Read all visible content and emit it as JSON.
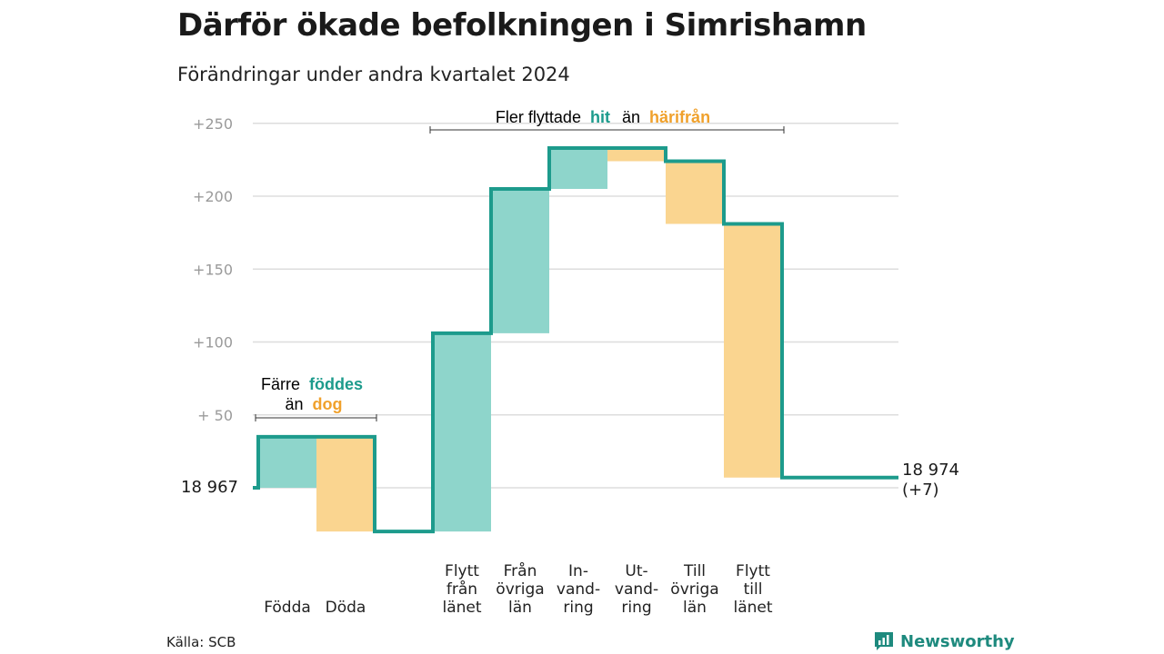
{
  "title": "Därför ökade befolkningen i Simrishamn",
  "subtitle": "Förändringar under andra kvartalet 2024",
  "source": "Källa: SCB",
  "brand": "Newsworthy",
  "colors": {
    "increase": "#8ed5cb",
    "decrease": "#fad590",
    "line": "#1d9b8c",
    "accent_green": "#1d9b8c",
    "accent_orange": "#f0a12c",
    "grid": "#dddddd"
  },
  "annotations": {
    "births_deaths": {
      "line1_a": "Färre",
      "line1_b": "föddes",
      "line2_a": "än",
      "line2_b": "dog"
    },
    "migration": {
      "part_a": "Fler flyttade",
      "part_b": "hit",
      "part_c": "än",
      "part_d": "härifrån"
    }
  },
  "chart_data": {
    "type": "waterfall",
    "title": "Därför ökade befolkningen i Simrishamn",
    "subtitle": "Förändringar under andra kvartalet 2024",
    "start_value": 18967,
    "start_label": "18  967",
    "end_value": 18974,
    "end_label": "18 974",
    "end_change_label": "(+7)",
    "y_ticks": [
      {
        "value": 250,
        "label": "+250"
      },
      {
        "value": 200,
        "label": "+200"
      },
      {
        "value": 150,
        "label": "+150"
      },
      {
        "value": 100,
        "label": "+100"
      },
      {
        "value": 50,
        "label": "+  50"
      }
    ],
    "ylim": [
      -30,
      255
    ],
    "steps": [
      {
        "key": "fodda",
        "lines": [
          "Födda"
        ],
        "value": 35,
        "group": "natural"
      },
      {
        "key": "doda",
        "lines": [
          "Döda"
        ],
        "value": -65,
        "group": "natural"
      },
      {
        "key": "flytt-fran-lanet",
        "lines": [
          "Flytt",
          "från",
          "länet"
        ],
        "value": 136,
        "group": "migration"
      },
      {
        "key": "fran-ovriga-lan",
        "lines": [
          "Från",
          "övriga",
          "län"
        ],
        "value": 99,
        "group": "migration"
      },
      {
        "key": "invandring",
        "lines": [
          "In-",
          "vand-",
          "ring"
        ],
        "value": 28,
        "group": "migration"
      },
      {
        "key": "utvandring",
        "lines": [
          "Ut-",
          "vand-",
          "ring"
        ],
        "value": -9,
        "group": "migration"
      },
      {
        "key": "till-ovriga-lan",
        "lines": [
          "Till",
          "övriga",
          "län"
        ],
        "value": -43,
        "group": "migration"
      },
      {
        "key": "flytt-till-lanet",
        "lines": [
          "Flytt",
          "till",
          "länet"
        ],
        "value": -174,
        "group": "migration"
      }
    ],
    "grid": true,
    "legend": "none"
  }
}
